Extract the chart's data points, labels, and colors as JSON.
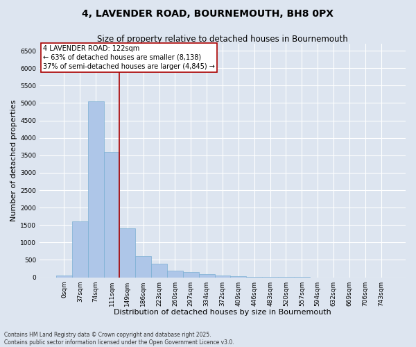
{
  "title_line1": "4, LAVENDER ROAD, BOURNEMOUTH, BH8 0PX",
  "title_line2": "Size of property relative to detached houses in Bournemouth",
  "xlabel": "Distribution of detached houses by size in Bournemouth",
  "ylabel": "Number of detached properties",
  "bar_color": "#aec6e8",
  "bar_edge_color": "#7bafd4",
  "background_color": "#dde5f0",
  "grid_color": "#ffffff",
  "annotation_text": "4 LAVENDER ROAD: 122sqm\n← 63% of detached houses are smaller (8,138)\n37% of semi-detached houses are larger (4,845) →",
  "annotation_box_color": "#ffffff",
  "annotation_border_color": "#aa0000",
  "vline_color": "#aa0000",
  "footnote": "Contains HM Land Registry data © Crown copyright and database right 2025.\nContains public sector information licensed under the Open Government Licence v3.0.",
  "bins": [
    0,
    37,
    74,
    111,
    149,
    186,
    223,
    260,
    297,
    334,
    372,
    409,
    446,
    483,
    520,
    557,
    594,
    632,
    669,
    706,
    743
  ],
  "counts": [
    50,
    1600,
    5050,
    3600,
    1400,
    600,
    400,
    200,
    150,
    100,
    60,
    30,
    15,
    8,
    4,
    2,
    1,
    1,
    0,
    0,
    0
  ],
  "ylim": [
    0,
    6700
  ],
  "yticks": [
    0,
    500,
    1000,
    1500,
    2000,
    2500,
    3000,
    3500,
    4000,
    4500,
    5000,
    5500,
    6000,
    6500
  ],
  "vline_bar_index": 3,
  "title_fontsize": 10,
  "subtitle_fontsize": 8.5,
  "tick_fontsize": 6.5,
  "label_fontsize": 8,
  "annot_fontsize": 7
}
